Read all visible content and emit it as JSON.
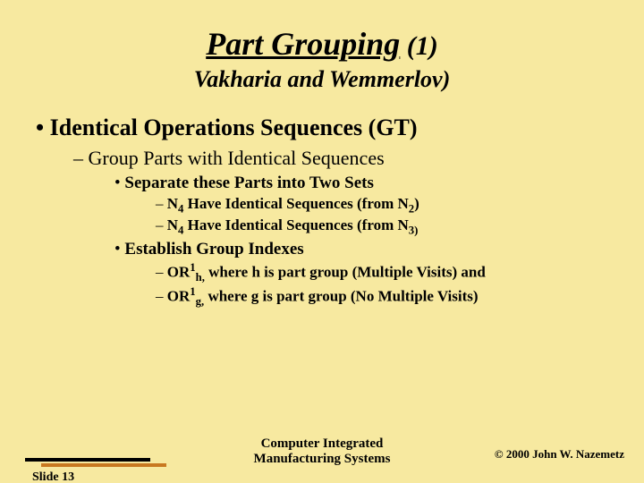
{
  "title": {
    "main": "Part Grouping",
    "paren": " (1)"
  },
  "subtitle": "Vakharia and Wemmerlov)",
  "lvl1_1": "Identical Operations Sequences (GT)",
  "lvl2_1": "Group Parts with Identical Sequences",
  "lvl3_1": "Separate these Parts into Two Sets",
  "lvl4_1": {
    "prefix": "N",
    "sub1": "4",
    "mid": " Have Identical Sequences (from N",
    "sub2": "2",
    "suffix": ")"
  },
  "lvl4_2": {
    "prefix": "N",
    "sub1": "4",
    "mid": " Have Identical Sequences (from N",
    "sub2": "3)",
    "suffix": ""
  },
  "lvl3_2": "Establish Group Indexes",
  "lvl4_3": {
    "prefix": "OR",
    "sup": "1",
    "sub": "h,",
    "rest": " where h is part group (Multiple Visits) and"
  },
  "lvl4_4": {
    "prefix": "OR",
    "sup": "1",
    "sub": "g,",
    "rest": " where g is part group (No Multiple Visits)"
  },
  "footer": {
    "slide_num": "Slide  13",
    "center_line1": "Computer Integrated",
    "center_line2": "Manufacturing Systems",
    "copyright": "©  2000  John W. Nazemetz"
  },
  "colors": {
    "background": "#f7e9a0",
    "bar_orange": "#c87820",
    "text": "#000000"
  }
}
